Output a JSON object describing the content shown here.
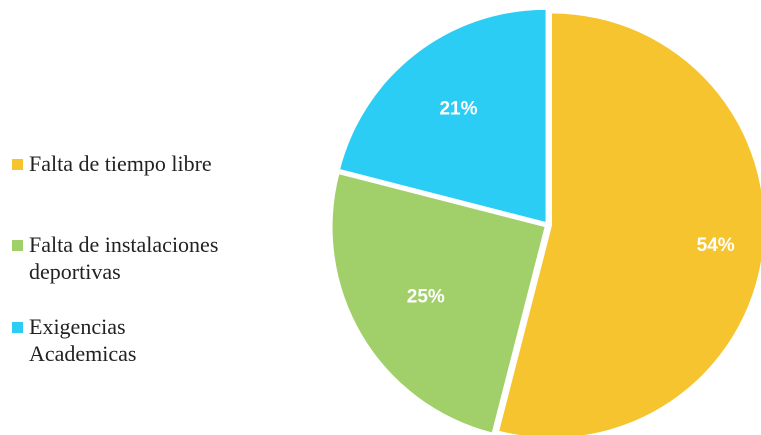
{
  "chart_data": {
    "type": "pie",
    "title": "",
    "legend_position": "left",
    "slices": [
      {
        "label": "Falta de tiempo libre",
        "value": 54,
        "display": "54%",
        "color": "#F6C42E"
      },
      {
        "label": "Falta de instalaciones deportivas",
        "value": 25,
        "display": "25%",
        "color": "#A1D06A"
      },
      {
        "label": "Exigencias Academicas",
        "value": 21,
        "display": "21%",
        "color": "#2CCDF5"
      }
    ]
  }
}
